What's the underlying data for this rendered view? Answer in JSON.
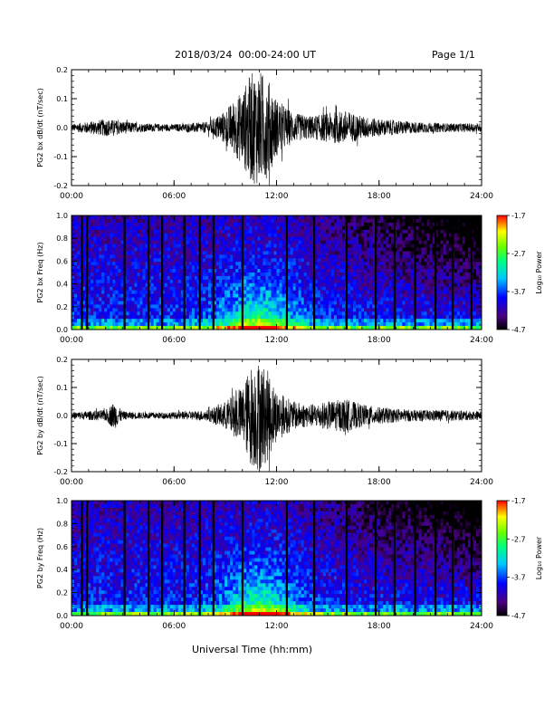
{
  "header": {
    "title": "2018/03/24  00:00-24:00 UT",
    "page": "Page 1/1"
  },
  "chart_data": [
    {
      "type": "line",
      "ylabel": "PG2 bx dB/dt (nT/sec)",
      "xlim": [
        0,
        24
      ],
      "ylim": [
        -0.2,
        0.2
      ],
      "yticks": [
        "0.2",
        "0.1",
        "0.0",
        "-0.1",
        "-0.2"
      ],
      "xticks": [
        "00:00",
        "06:00",
        "12:00",
        "18:00",
        "24:00"
      ],
      "series": [
        {
          "x": [
            0,
            2,
            4,
            6,
            8,
            9,
            10,
            10.5,
            11,
            11.5,
            12,
            13,
            14,
            15,
            16,
            17,
            18,
            20,
            22,
            24
          ],
          "envelope": [
            0.012,
            0.03,
            0.015,
            0.012,
            0.02,
            0.06,
            0.13,
            0.19,
            0.2,
            0.17,
            0.1,
            0.05,
            0.04,
            0.05,
            0.06,
            0.04,
            0.03,
            0.02,
            0.015,
            0.015
          ]
        }
      ]
    },
    {
      "type": "heatmap",
      "ylabel": "PG2 bx Freq (Hz)",
      "xlim": [
        0,
        24
      ],
      "ylim": [
        0,
        1.0
      ],
      "yticks": [
        "1.0",
        "0.8",
        "0.6",
        "0.4",
        "0.2",
        "0.0"
      ],
      "xticks": [
        "00:00",
        "06:00",
        "12:00",
        "18:00",
        "24:00"
      ],
      "colorbar": {
        "label": "Log₁₀ Power",
        "ticks": [
          "-1.7",
          "-2.7",
          "-3.7",
          "-4.7"
        ],
        "range": [
          -4.7,
          -1.7
        ]
      },
      "gap_times": [
        0.6,
        0.9,
        3.1,
        4.5,
        5.3,
        6.6,
        7.5,
        8.3,
        10.0,
        12.6,
        14.2,
        16.1,
        17.8,
        18.9,
        20.1,
        21.3,
        22.3,
        23.4
      ]
    },
    {
      "type": "line",
      "ylabel": "PG2 by dB/dt (nT/sec)",
      "xlim": [
        0,
        24
      ],
      "ylim": [
        -0.2,
        0.2
      ],
      "yticks": [
        "0.2",
        "0.1",
        "0.0",
        "-0.1",
        "-0.2"
      ],
      "xticks": [
        "00:00",
        "06:00",
        "12:00",
        "18:00",
        "24:00"
      ],
      "series": [
        {
          "x": [
            0,
            2,
            2.5,
            3,
            4,
            6,
            8,
            9,
            10,
            10.5,
            11,
            11.5,
            12,
            13,
            14,
            15,
            16,
            17,
            18,
            20,
            22,
            24
          ],
          "envelope": [
            0.012,
            0.02,
            0.05,
            0.015,
            0.012,
            0.012,
            0.02,
            0.05,
            0.1,
            0.18,
            0.2,
            0.16,
            0.09,
            0.05,
            0.04,
            0.05,
            0.06,
            0.04,
            0.03,
            0.02,
            0.02,
            0.015
          ]
        }
      ]
    },
    {
      "type": "heatmap",
      "ylabel": "PG2 by Freq (Hz)",
      "xlim": [
        0,
        24
      ],
      "ylim": [
        0,
        1.0
      ],
      "yticks": [
        "1.0",
        "0.8",
        "0.6",
        "0.4",
        "0.2",
        "0.0"
      ],
      "xticks": [
        "00:00",
        "06:00",
        "12:00",
        "18:00",
        "24:00"
      ],
      "colorbar": {
        "label": "Log₁₀ Power",
        "ticks": [
          "-1.7",
          "-2.7",
          "-3.7",
          "-4.7"
        ],
        "range": [
          -4.7,
          -1.7
        ]
      },
      "gap_times": [
        0.6,
        0.9,
        3.1,
        4.5,
        5.3,
        6.6,
        7.5,
        8.3,
        10.0,
        12.6,
        14.2,
        16.1,
        17.8,
        18.9,
        20.1,
        21.3,
        22.3,
        23.4
      ]
    }
  ],
  "xlabel": "Universal Time (hh:mm)"
}
